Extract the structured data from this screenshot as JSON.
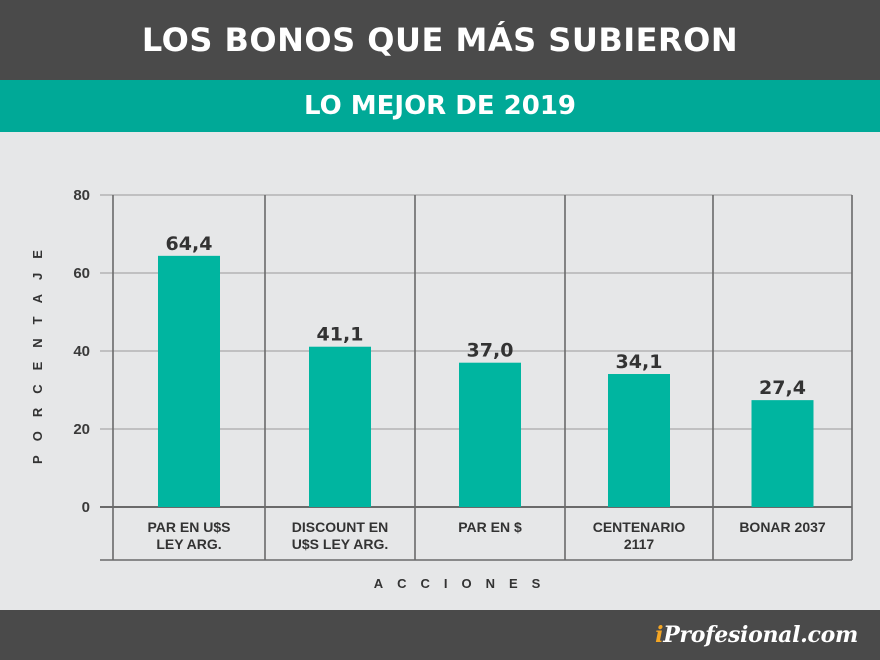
{
  "header": {
    "title": "LOS BONOS QUE MÁS SUBIERON"
  },
  "subheader": {
    "title": "LO MEJOR DE 2019"
  },
  "footer": {
    "brand_i": "i",
    "brand_rest": "Profesional.com"
  },
  "colors": {
    "header_bg": "#4a4a4a",
    "accent": "#00a997",
    "bar": "#00b5a0",
    "background": "#e6e7e8",
    "brand_i": "#f5a623"
  },
  "chart_data": {
    "type": "bar",
    "categories": [
      [
        "PAR EN U$S",
        "LEY ARG."
      ],
      [
        "DISCOUNT EN",
        "U$S LEY ARG."
      ],
      [
        "PAR EN $"
      ],
      [
        "CENTENARIO",
        "2117"
      ],
      [
        "BONAR 2037"
      ]
    ],
    "values": [
      64.4,
      41.1,
      37.0,
      34.1,
      27.4
    ],
    "value_labels": [
      "64,4",
      "41,1",
      "37,0",
      "34,1",
      "27,4"
    ],
    "xlabel": "ACCIONES",
    "ylabel": "PORCENTAJE",
    "ylim": [
      0,
      80
    ],
    "yticks": [
      0,
      20,
      40,
      60,
      80
    ],
    "grid": true
  }
}
